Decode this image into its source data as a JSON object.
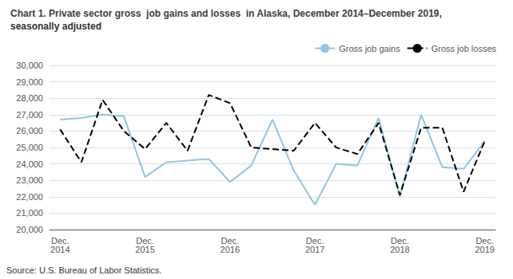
{
  "chart_data": {
    "type": "line",
    "title": "Chart 1. Private sector gross  job gains and losses  in Alaska, December 2014–December 2019,",
    "subtitle": "seasonally adjusted",
    "annotations": [
      "Source: U.S. Bureau of Labor Statistics."
    ],
    "categories": [
      "Dec.\n2014",
      null,
      null,
      null,
      "Dec.\n2015",
      null,
      null,
      null,
      "Dec.\n2016",
      null,
      null,
      null,
      "Dec.\n2017",
      null,
      null,
      null,
      "Dec.\n2018",
      null,
      null,
      null,
      "Dec.\n2019"
    ],
    "series": [
      {
        "name": "Gross job gains",
        "color": "#92c5de",
        "line_style": "solid",
        "values": [
          26700,
          26800,
          27000,
          26900,
          23200,
          24100,
          24200,
          24300,
          22900,
          23900,
          26700,
          23600,
          21500,
          24000,
          23900,
          26800,
          22000,
          27000,
          23800,
          23700,
          25400
        ]
      },
      {
        "name": "Gross job losses",
        "color": "#000000",
        "line_style": "dashed",
        "values": [
          26100,
          24100,
          27900,
          26000,
          24900,
          26500,
          24800,
          28200,
          27700,
          25000,
          24900,
          24800,
          26500,
          25000,
          24600,
          26500,
          22100,
          26200,
          26200,
          22300,
          25400
        ]
      }
    ],
    "ylim": [
      20000,
      30000
    ],
    "yticks": [
      {
        "value": 20000,
        "label": "20,000"
      },
      {
        "value": 21000,
        "label": "21,000"
      },
      {
        "value": 22000,
        "label": "22,000"
      },
      {
        "value": 23000,
        "label": "23,000"
      },
      {
        "value": 24000,
        "label": "24,000"
      },
      {
        "value": 25000,
        "label": "25,000"
      },
      {
        "value": 26000,
        "label": "26,000"
      },
      {
        "value": 27000,
        "label": "27,000"
      },
      {
        "value": 28000,
        "label": "28,000"
      },
      {
        "value": 29000,
        "label": "29,000"
      },
      {
        "value": 30000,
        "label": "30,000"
      }
    ],
    "grid": true,
    "legend": "upper right"
  }
}
